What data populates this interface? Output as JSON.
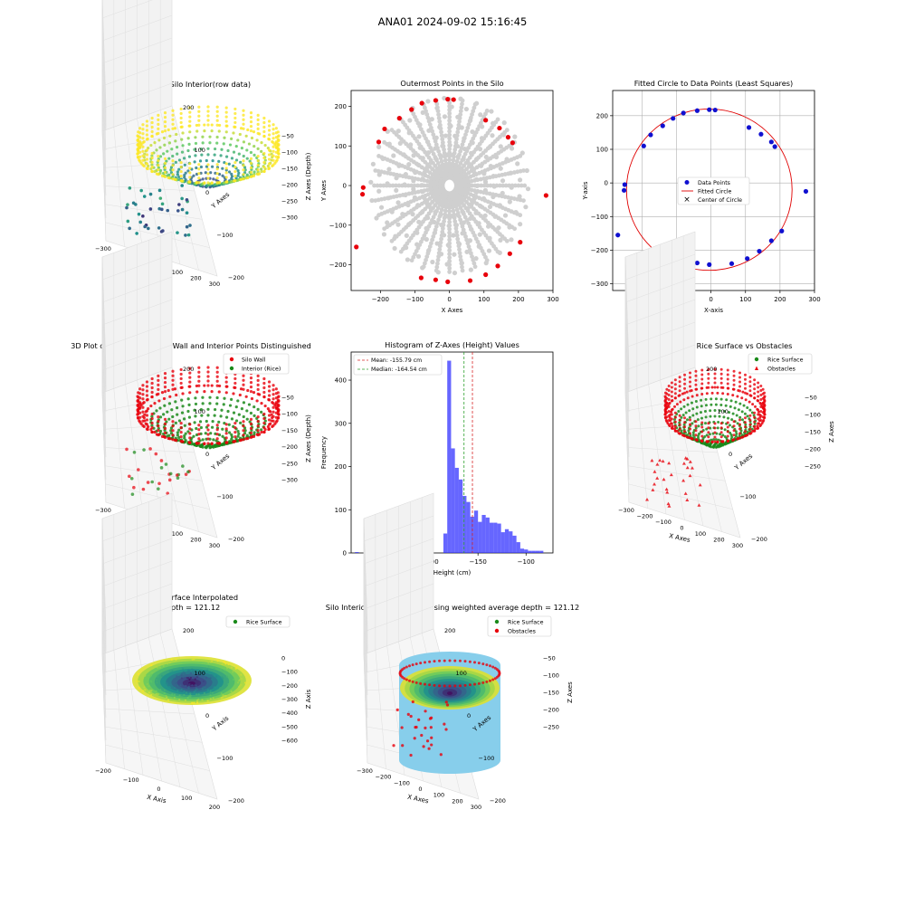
{
  "suptitle": "ANA01 2024-09-02 15:16:45",
  "colors": {
    "wall": "#e8000b",
    "interior": "#1a8a1a",
    "hist": "#3333ff",
    "mean": "#d62728",
    "median": "#2ca02c",
    "cylinder": "#87ceeb",
    "grey_points": "#cfcfcf",
    "fit_points": "#1010d0",
    "fit_circle": "#e00000"
  },
  "chart_data": [
    {
      "id": "p1",
      "type": "scatter3d",
      "title": "3D Plot of Silo Interior(row data)",
      "xlabel": "X Axes",
      "ylabel": "Y Axes",
      "zlabel": "Z Axes (Depth)",
      "xticks": [
        "−300",
        "−200",
        "−100",
        "0",
        "100",
        "200",
        "300"
      ],
      "yticks": [
        "−200",
        "−100",
        "0",
        "100",
        "200"
      ],
      "zticks": [
        "−50",
        "−100",
        "−150",
        "−200",
        "−250",
        "−300"
      ],
      "colormap": "viridis"
    },
    {
      "id": "p2",
      "type": "scatter",
      "title": "Outermost Points in the Silo",
      "xlabel": "X Axes",
      "ylabel": "Y Axes",
      "xlim": [
        -285,
        300
      ],
      "ylim": [
        -265,
        240
      ],
      "xticks": [
        -200,
        -100,
        0,
        100,
        200,
        300
      ],
      "yticks": [
        -200,
        -100,
        0,
        100,
        200
      ],
      "outer_points": [
        [
          -250,
          -5
        ],
        [
          -252,
          -22
        ],
        [
          -270,
          -155
        ],
        [
          -205,
          110
        ],
        [
          -188,
          143
        ],
        [
          -145,
          170
        ],
        [
          -110,
          192
        ],
        [
          -80,
          208
        ],
        [
          -40,
          215
        ],
        [
          -5,
          218
        ],
        [
          12,
          217
        ],
        [
          60,
          -240
        ],
        [
          -5,
          -243
        ],
        [
          -40,
          -238
        ],
        [
          -82,
          -233
        ],
        [
          105,
          165
        ],
        [
          145,
          145
        ],
        [
          170,
          122
        ],
        [
          183,
          108
        ],
        [
          205,
          -143
        ],
        [
          175,
          -172
        ],
        [
          140,
          -203
        ],
        [
          105,
          -225
        ],
        [
          280,
          -25
        ]
      ]
    },
    {
      "id": "p3",
      "type": "scatter",
      "title": "Fitted Circle to Data Points (Least Squares)",
      "xlabel": "X-axis",
      "ylabel": "Y-axis",
      "xlim": [
        -285,
        300
      ],
      "ylim": [
        -320,
        275
      ],
      "xticks": [
        -200,
        -100,
        0,
        100,
        200,
        300
      ],
      "yticks": [
        -300,
        -200,
        -100,
        0,
        100,
        200
      ],
      "legend": [
        "Data Points",
        "Fitted Circle",
        "Center of Circle"
      ],
      "circle_center": [
        -5,
        -20
      ],
      "circle_radius": 240,
      "points": [
        [
          -250,
          -5
        ],
        [
          -252,
          -22
        ],
        [
          -270,
          -155
        ],
        [
          -195,
          110
        ],
        [
          -175,
          143
        ],
        [
          -140,
          170
        ],
        [
          -110,
          192
        ],
        [
          -80,
          208
        ],
        [
          -40,
          215
        ],
        [
          -5,
          218
        ],
        [
          12,
          217
        ],
        [
          60,
          -240
        ],
        [
          -5,
          -243
        ],
        [
          -40,
          -238
        ],
        [
          -82,
          -233
        ],
        [
          110,
          165
        ],
        [
          145,
          145
        ],
        [
          175,
          122
        ],
        [
          185,
          108
        ],
        [
          205,
          -143
        ],
        [
          175,
          -172
        ],
        [
          140,
          -203
        ],
        [
          105,
          -225
        ],
        [
          275,
          -25
        ]
      ]
    },
    {
      "id": "p4",
      "type": "scatter3d",
      "title": "3D Plot of Silo Interior with Wall and Interior Points Distinguished",
      "xlabel": "X Axes",
      "ylabel": "Y Axes",
      "zlabel": "Z Axes (Depth)",
      "legend": [
        "Silo Wall",
        "Interior (Rice)"
      ],
      "xticks": [
        "−300",
        "−200",
        "−100",
        "0",
        "100",
        "200",
        "300"
      ],
      "yticks": [
        "−200",
        "−100",
        "0",
        "100",
        "200"
      ],
      "zticks": [
        "−50",
        "−100",
        "−150",
        "−200",
        "−250",
        "−300"
      ]
    },
    {
      "id": "p5",
      "type": "bar",
      "title": "Histogram of Z-Axes (Height) Values",
      "xlabel": "Height (cm)",
      "ylabel": "Frequency",
      "xlim": [
        -282,
        -72
      ],
      "ylim": [
        0,
        465
      ],
      "xticks": [
        -250,
        -200,
        -150,
        -100
      ],
      "yticks": [
        0,
        100,
        200,
        300,
        400
      ],
      "mean": -155.79,
      "median": -164.54,
      "legend": [
        "Mean: -155.79 cm",
        "Median: -164.54 cm"
      ],
      "bin_width": 4,
      "bins": [
        [
          -278,
          2
        ],
        [
          -214,
          2
        ],
        [
          -186,
          45
        ],
        [
          -182,
          445
        ],
        [
          -178,
          242
        ],
        [
          -174,
          197
        ],
        [
          -170,
          170
        ],
        [
          -166,
          132
        ],
        [
          -162,
          118
        ],
        [
          -158,
          84
        ],
        [
          -154,
          98
        ],
        [
          -150,
          72
        ],
        [
          -146,
          88
        ],
        [
          -142,
          82
        ],
        [
          -138,
          70
        ],
        [
          -134,
          70
        ],
        [
          -130,
          68
        ],
        [
          -126,
          48
        ],
        [
          -122,
          55
        ],
        [
          -118,
          50
        ],
        [
          -114,
          40
        ],
        [
          -110,
          25
        ],
        [
          -106,
          10
        ],
        [
          -102,
          8
        ],
        [
          -98,
          5
        ],
        [
          -94,
          5
        ],
        [
          -90,
          5
        ],
        [
          -86,
          5
        ]
      ]
    },
    {
      "id": "p6",
      "type": "scatter3d",
      "title": "3D Scatter Plot: Rice Surface vs Obstacles",
      "xlabel": "X Axes",
      "ylabel": "Y Axes",
      "zlabel": "Z Axes",
      "legend": [
        "Rice Surface",
        "Obstacles"
      ],
      "xticks": [
        "−300",
        "−200",
        "−100",
        "0",
        "100",
        "200",
        "300"
      ],
      "yticks": [
        "−200",
        "−100",
        "0",
        "100",
        "200"
      ],
      "zticks": [
        "−50",
        "−100",
        "−150",
        "−200",
        "−250"
      ]
    },
    {
      "id": "p7",
      "type": "surface3d",
      "title": "Rice Surface Interpolated",
      "subtitle": "depth = 121.12",
      "xlabel": "X Axis",
      "ylabel": "Y Axis",
      "zlabel": "Z Axis",
      "legend": [
        "Rice Surface"
      ],
      "xticks": [
        "−200",
        "−100",
        "0",
        "100",
        "200"
      ],
      "yticks": [
        "−200",
        "−100",
        "0",
        "100",
        "200"
      ],
      "zticks": [
        "0",
        "−100",
        "−200",
        "−300",
        "−400",
        "−500",
        "−600"
      ]
    },
    {
      "id": "p8",
      "type": "scatter3d",
      "title": "Silo Interior Representation using weighted average depth = 121.12",
      "xlabel": "X Axes",
      "ylabel": "Y Axes",
      "zlabel": "Z Axes",
      "legend": [
        "Rice Surface",
        "Obstacles"
      ],
      "xticks": [
        "−300",
        "−200",
        "−100",
        "0",
        "100",
        "200",
        "300"
      ],
      "yticks": [
        "−200",
        "−100",
        "0",
        "100",
        "200"
      ],
      "zticks": [
        "−50",
        "−100",
        "−150",
        "−200",
        "−250"
      ]
    }
  ]
}
